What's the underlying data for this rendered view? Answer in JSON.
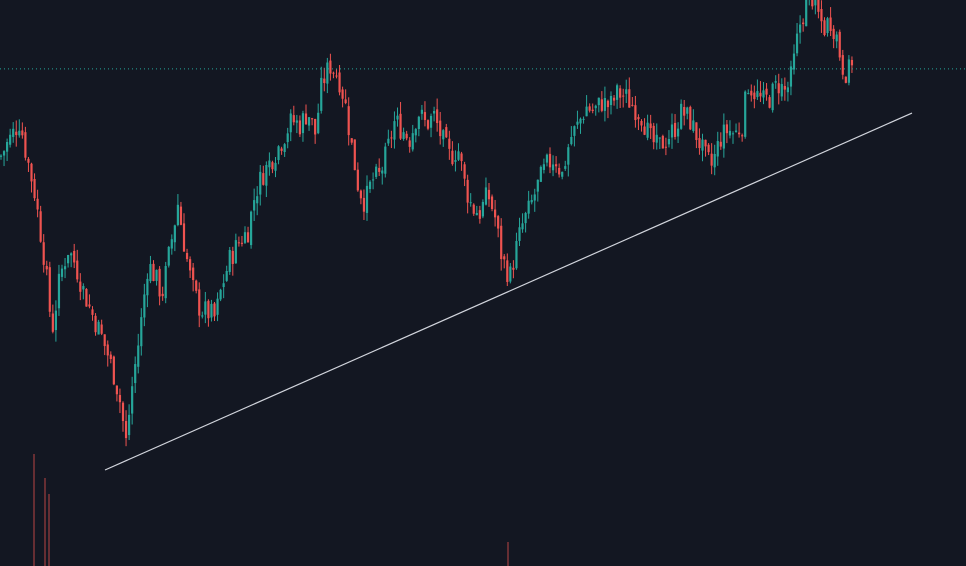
{
  "theme": {
    "background": "#131722",
    "up_color": "#26a69a",
    "down_color": "#ef5350",
    "trendline_color": "#d1d4dc",
    "price_line_color": "#26a69a"
  },
  "chart_data": {
    "type": "candlestick",
    "title": "",
    "xlabel": "",
    "ylabel": "",
    "ylim": [
      0,
      100
    ],
    "grid": false,
    "legend": "none",
    "current_price": 87.2,
    "close_path": [
      [
        0,
        68
      ],
      [
        10,
        72
      ],
      [
        20,
        76
      ],
      [
        25,
        70
      ],
      [
        35,
        60
      ],
      [
        45,
        45
      ],
      [
        52,
        30
      ],
      [
        60,
        42
      ],
      [
        68,
        48
      ],
      [
        75,
        45
      ],
      [
        82,
        40
      ],
      [
        90,
        35
      ],
      [
        100,
        30
      ],
      [
        108,
        25
      ],
      [
        115,
        20
      ],
      [
        120,
        15
      ],
      [
        126,
        6
      ],
      [
        132,
        18
      ],
      [
        140,
        30
      ],
      [
        148,
        45
      ],
      [
        155,
        42
      ],
      [
        162,
        38
      ],
      [
        170,
        48
      ],
      [
        178,
        58
      ],
      [
        185,
        48
      ],
      [
        192,
        40
      ],
      [
        200,
        35
      ],
      [
        210,
        34
      ],
      [
        215,
        33
      ],
      [
        222,
        40
      ],
      [
        230,
        46
      ],
      [
        240,
        50
      ],
      [
        248,
        52
      ],
      [
        255,
        60
      ],
      [
        262,
        64
      ],
      [
        270,
        67
      ],
      [
        278,
        70
      ],
      [
        285,
        73
      ],
      [
        292,
        76
      ],
      [
        300,
        75
      ],
      [
        308,
        78
      ],
      [
        315,
        73
      ],
      [
        322,
        84
      ],
      [
        330,
        88
      ],
      [
        338,
        86
      ],
      [
        345,
        80
      ],
      [
        352,
        70
      ],
      [
        358,
        62
      ],
      [
        365,
        58
      ],
      [
        372,
        63
      ],
      [
        380,
        64
      ],
      [
        388,
        70
      ],
      [
        395,
        76
      ],
      [
        402,
        74
      ],
      [
        410,
        72
      ],
      [
        418,
        78
      ],
      [
        426,
        75
      ],
      [
        434,
        77
      ],
      [
        442,
        72
      ],
      [
        450,
        68
      ],
      [
        458,
        70
      ],
      [
        465,
        62
      ],
      [
        472,
        57
      ],
      [
        480,
        56
      ],
      [
        488,
        60
      ],
      [
        495,
        55
      ],
      [
        502,
        46
      ],
      [
        510,
        42
      ],
      [
        516,
        48
      ],
      [
        522,
        53
      ],
      [
        530,
        57
      ],
      [
        538,
        62
      ],
      [
        546,
        66
      ],
      [
        555,
        68
      ],
      [
        562,
        64
      ],
      [
        570,
        72
      ],
      [
        578,
        75
      ],
      [
        586,
        79
      ],
      [
        594,
        78
      ],
      [
        602,
        80
      ],
      [
        610,
        79
      ],
      [
        618,
        82
      ],
      [
        626,
        81
      ],
      [
        634,
        79
      ],
      [
        642,
        77
      ],
      [
        650,
        72
      ],
      [
        658,
        70
      ],
      [
        666,
        72
      ],
      [
        674,
        74
      ],
      [
        682,
        78
      ],
      [
        690,
        76
      ],
      [
        698,
        72
      ],
      [
        705,
        68
      ],
      [
        712,
        66
      ],
      [
        720,
        72
      ],
      [
        728,
        74
      ],
      [
        735,
        73
      ],
      [
        742,
        75
      ],
      [
        748,
        84
      ],
      [
        755,
        82
      ],
      [
        762,
        80
      ],
      [
        770,
        81
      ],
      [
        778,
        84
      ],
      [
        786,
        82
      ],
      [
        792,
        86
      ],
      [
        796,
        92
      ],
      [
        800,
        97
      ],
      [
        806,
        101
      ],
      [
        812,
        103
      ],
      [
        818,
        99
      ],
      [
        824,
        96
      ],
      [
        830,
        98
      ],
      [
        836,
        95
      ],
      [
        842,
        88
      ],
      [
        848,
        86
      ],
      [
        854,
        91
      ]
    ],
    "trendline": {
      "start": {
        "x": 105,
        "y": 0
      },
      "end": {
        "x": 912,
        "y": 77.6
      }
    },
    "volume_spikes": [
      {
        "x": 34,
        "value": 28
      },
      {
        "x": 45,
        "value": 22
      },
      {
        "x": 49,
        "value": 18
      },
      {
        "x": 508,
        "value": 6
      }
    ]
  }
}
